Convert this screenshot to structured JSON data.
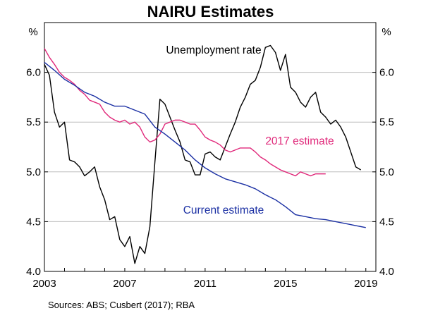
{
  "chart_data": {
    "type": "line",
    "title": "NAIRU Estimates",
    "y_unit_left": "%",
    "y_unit_right": "%",
    "ylim": [
      4.0,
      6.5
    ],
    "yticks": [
      "4.0",
      "4.5",
      "5.0",
      "5.5",
      "6.0"
    ],
    "yticks_right": [
      "4.0",
      "4.5",
      "5.0",
      "5.5",
      "6.0"
    ],
    "xlim": [
      2003.0,
      2019.5
    ],
    "xticks": [
      "2003",
      "2007",
      "2011",
      "2015",
      "2019"
    ],
    "grid": true,
    "source": "Sources:   ABS; Cusbert (2017); RBA",
    "series": [
      {
        "name": "Unemployment rate",
        "color": "#000000",
        "points": [
          [
            2003.0,
            6.08
          ],
          [
            2003.25,
            5.97
          ],
          [
            2003.5,
            5.6
          ],
          [
            2003.75,
            5.45
          ],
          [
            2004.0,
            5.5
          ],
          [
            2004.25,
            5.12
          ],
          [
            2004.5,
            5.1
          ],
          [
            2004.75,
            5.05
          ],
          [
            2005.0,
            4.96
          ],
          [
            2005.25,
            5.0
          ],
          [
            2005.5,
            5.05
          ],
          [
            2005.75,
            4.85
          ],
          [
            2006.0,
            4.72
          ],
          [
            2006.25,
            4.52
          ],
          [
            2006.5,
            4.55
          ],
          [
            2006.75,
            4.32
          ],
          [
            2007.0,
            4.25
          ],
          [
            2007.25,
            4.35
          ],
          [
            2007.5,
            4.08
          ],
          [
            2007.75,
            4.25
          ],
          [
            2008.0,
            4.18
          ],
          [
            2008.25,
            4.45
          ],
          [
            2008.5,
            5.1
          ],
          [
            2008.75,
            5.73
          ],
          [
            2009.0,
            5.68
          ],
          [
            2009.25,
            5.55
          ],
          [
            2009.5,
            5.42
          ],
          [
            2009.75,
            5.3
          ],
          [
            2010.0,
            5.12
          ],
          [
            2010.25,
            5.1
          ],
          [
            2010.5,
            4.97
          ],
          [
            2010.75,
            4.97
          ],
          [
            2011.0,
            5.18
          ],
          [
            2011.25,
            5.2
          ],
          [
            2011.5,
            5.15
          ],
          [
            2011.75,
            5.12
          ],
          [
            2012.0,
            5.25
          ],
          [
            2012.25,
            5.38
          ],
          [
            2012.5,
            5.5
          ],
          [
            2012.75,
            5.65
          ],
          [
            2013.0,
            5.75
          ],
          [
            2013.25,
            5.88
          ],
          [
            2013.5,
            5.92
          ],
          [
            2013.75,
            6.05
          ],
          [
            2014.0,
            6.25
          ],
          [
            2014.25,
            6.27
          ],
          [
            2014.5,
            6.2
          ],
          [
            2014.75,
            6.02
          ],
          [
            2015.0,
            6.18
          ],
          [
            2015.25,
            5.85
          ],
          [
            2015.5,
            5.8
          ],
          [
            2015.75,
            5.7
          ],
          [
            2016.0,
            5.65
          ],
          [
            2016.25,
            5.75
          ],
          [
            2016.5,
            5.8
          ],
          [
            2016.75,
            5.6
          ],
          [
            2017.0,
            5.55
          ],
          [
            2017.25,
            5.48
          ],
          [
            2017.5,
            5.52
          ],
          [
            2017.75,
            5.45
          ],
          [
            2018.0,
            5.35
          ],
          [
            2018.25,
            5.2
          ],
          [
            2018.5,
            5.05
          ],
          [
            2018.75,
            5.02
          ]
        ]
      },
      {
        "name": "2017 estimate",
        "color": "#e0287a",
        "points": [
          [
            2003.0,
            6.24
          ],
          [
            2003.25,
            6.15
          ],
          [
            2003.5,
            6.08
          ],
          [
            2003.75,
            6.0
          ],
          [
            2004.0,
            5.95
          ],
          [
            2004.25,
            5.92
          ],
          [
            2004.5,
            5.88
          ],
          [
            2004.75,
            5.82
          ],
          [
            2005.0,
            5.78
          ],
          [
            2005.25,
            5.72
          ],
          [
            2005.5,
            5.7
          ],
          [
            2005.75,
            5.68
          ],
          [
            2006.0,
            5.6
          ],
          [
            2006.25,
            5.55
          ],
          [
            2006.5,
            5.52
          ],
          [
            2006.75,
            5.5
          ],
          [
            2007.0,
            5.52
          ],
          [
            2007.25,
            5.48
          ],
          [
            2007.5,
            5.5
          ],
          [
            2007.75,
            5.45
          ],
          [
            2008.0,
            5.35
          ],
          [
            2008.25,
            5.3
          ],
          [
            2008.5,
            5.32
          ],
          [
            2008.75,
            5.38
          ],
          [
            2009.0,
            5.48
          ],
          [
            2009.25,
            5.5
          ],
          [
            2009.5,
            5.52
          ],
          [
            2009.75,
            5.52
          ],
          [
            2010.0,
            5.5
          ],
          [
            2010.25,
            5.48
          ],
          [
            2010.5,
            5.48
          ],
          [
            2010.75,
            5.42
          ],
          [
            2011.0,
            5.35
          ],
          [
            2011.25,
            5.32
          ],
          [
            2011.5,
            5.3
          ],
          [
            2011.75,
            5.27
          ],
          [
            2012.0,
            5.22
          ],
          [
            2012.25,
            5.2
          ],
          [
            2012.5,
            5.22
          ],
          [
            2012.75,
            5.24
          ],
          [
            2013.0,
            5.24
          ],
          [
            2013.25,
            5.24
          ],
          [
            2013.5,
            5.2
          ],
          [
            2013.75,
            5.15
          ],
          [
            2014.0,
            5.12
          ],
          [
            2014.25,
            5.08
          ],
          [
            2014.5,
            5.05
          ],
          [
            2014.75,
            5.02
          ],
          [
            2015.0,
            5.0
          ],
          [
            2015.25,
            4.98
          ],
          [
            2015.5,
            4.96
          ],
          [
            2015.75,
            5.0
          ],
          [
            2016.0,
            4.98
          ],
          [
            2016.25,
            4.96
          ],
          [
            2016.5,
            4.98
          ],
          [
            2016.75,
            4.98
          ],
          [
            2017.0,
            4.98
          ]
        ]
      },
      {
        "name": "Current estimate",
        "color": "#1a2fa3",
        "points": [
          [
            2003.0,
            6.1
          ],
          [
            2003.5,
            6.02
          ],
          [
            2004.0,
            5.93
          ],
          [
            2004.5,
            5.87
          ],
          [
            2005.0,
            5.8
          ],
          [
            2005.5,
            5.76
          ],
          [
            2006.0,
            5.7
          ],
          [
            2006.5,
            5.66
          ],
          [
            2007.0,
            5.66
          ],
          [
            2007.5,
            5.62
          ],
          [
            2008.0,
            5.58
          ],
          [
            2008.5,
            5.45
          ],
          [
            2009.0,
            5.38
          ],
          [
            2009.5,
            5.3
          ],
          [
            2010.0,
            5.22
          ],
          [
            2010.5,
            5.12
          ],
          [
            2011.0,
            5.04
          ],
          [
            2011.5,
            4.98
          ],
          [
            2012.0,
            4.93
          ],
          [
            2012.5,
            4.9
          ],
          [
            2013.0,
            4.87
          ],
          [
            2013.5,
            4.83
          ],
          [
            2014.0,
            4.77
          ],
          [
            2014.5,
            4.72
          ],
          [
            2015.0,
            4.65
          ],
          [
            2015.5,
            4.57
          ],
          [
            2016.0,
            4.55
          ],
          [
            2016.5,
            4.53
          ],
          [
            2017.0,
            4.52
          ],
          [
            2017.5,
            4.5
          ],
          [
            2018.0,
            4.48
          ],
          [
            2018.5,
            4.46
          ],
          [
            2019.0,
            4.44
          ]
        ]
      }
    ],
    "annotations": [
      "Unemployment rate",
      "2017 estimate",
      "Current estimate"
    ]
  }
}
